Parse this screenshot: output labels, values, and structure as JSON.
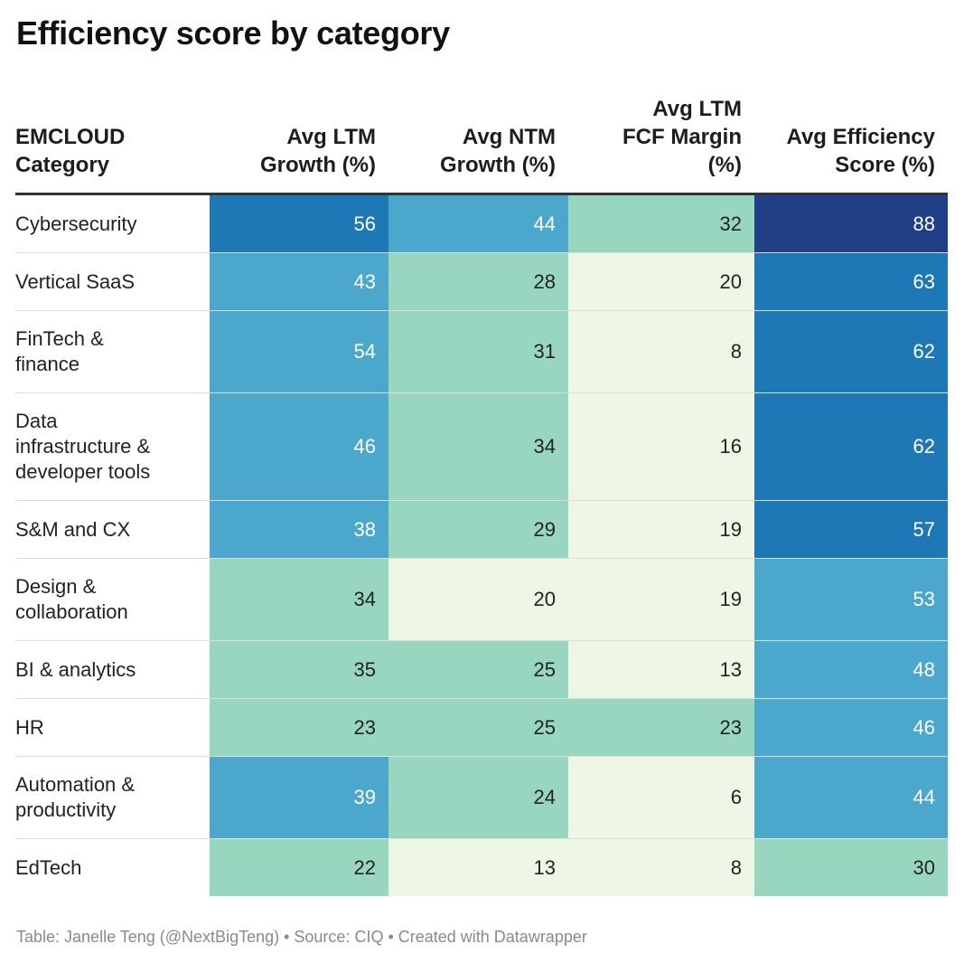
{
  "title": "Efficiency score by category",
  "chart_data": {
    "type": "table",
    "title": "Efficiency score by category",
    "columns": [
      "EMCLOUD\nCategory",
      "Avg LTM\nGrowth (%)",
      "Avg NTM\nGrowth (%)",
      "Avg LTM\nFCF Margin\n(%)",
      "Avg Efficiency\nScore (%)"
    ],
    "rows": [
      {
        "category": "Cybersecurity",
        "ltm_growth": 56,
        "ntm_growth": 44,
        "fcf_margin": 32,
        "efficiency": 88
      },
      {
        "category": "Vertical SaaS",
        "ltm_growth": 43,
        "ntm_growth": 28,
        "fcf_margin": 20,
        "efficiency": 63
      },
      {
        "category": "FinTech &\nfinance",
        "ltm_growth": 54,
        "ntm_growth": 31,
        "fcf_margin": 8,
        "efficiency": 62
      },
      {
        "category": "Data\ninfrastructure &\ndeveloper tools",
        "ltm_growth": 46,
        "ntm_growth": 34,
        "fcf_margin": 16,
        "efficiency": 62
      },
      {
        "category": "S&M and CX",
        "ltm_growth": 38,
        "ntm_growth": 29,
        "fcf_margin": 19,
        "efficiency": 57
      },
      {
        "category": "Design &\ncollaboration",
        "ltm_growth": 34,
        "ntm_growth": 20,
        "fcf_margin": 19,
        "efficiency": 53
      },
      {
        "category": "BI & analytics",
        "ltm_growth": 35,
        "ntm_growth": 25,
        "fcf_margin": 13,
        "efficiency": 48
      },
      {
        "category": "HR",
        "ltm_growth": 23,
        "ntm_growth": 25,
        "fcf_margin": 23,
        "efficiency": 46
      },
      {
        "category": "Automation &\nproductivity",
        "ltm_growth": 39,
        "ntm_growth": 24,
        "fcf_margin": 6,
        "efficiency": 44
      },
      {
        "category": "EdTech",
        "ltm_growth": 22,
        "ntm_growth": 13,
        "fcf_margin": 8,
        "efficiency": 30
      }
    ],
    "color_scale": [
      {
        "min": 0,
        "max": 22,
        "color": "#eef7e6",
        "text": "#222222"
      },
      {
        "min": 22,
        "max": 38,
        "color": "#98d6c0",
        "text": "#222222"
      },
      {
        "min": 38,
        "max": 55,
        "color": "#4ba8cc",
        "text": "#ffffff"
      },
      {
        "min": 55,
        "max": 80,
        "color": "#1f78b6",
        "text": "#ffffff"
      },
      {
        "min": 80,
        "max": 101,
        "color": "#213f87",
        "text": "#ffffff"
      }
    ]
  },
  "footer": "Table: Janelle Teng (@NextBigTeng) • Source: CIQ • Created with Datawrapper"
}
